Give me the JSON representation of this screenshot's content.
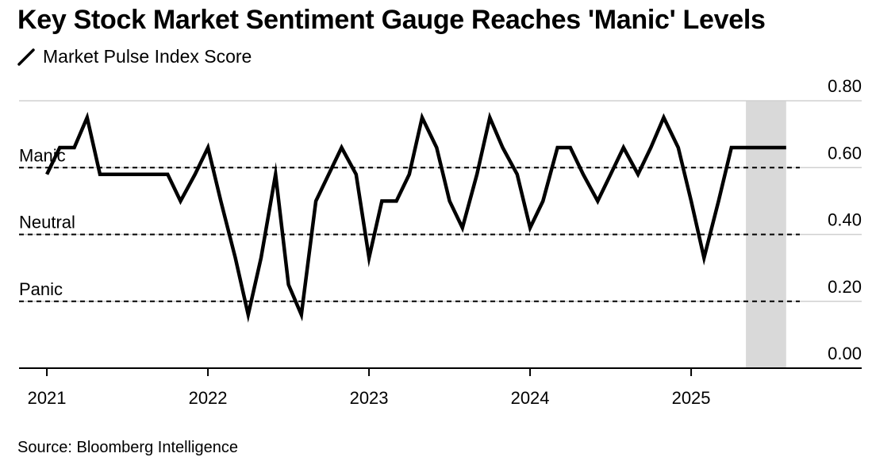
{
  "title": "Key Stock Market Sentiment Gauge Reaches 'Manic' Levels",
  "source": "Source: Bloomberg Intelligence",
  "chart_data": {
    "type": "line",
    "title": "Key Stock Market Sentiment Gauge Reaches 'Manic' Levels",
    "legend": "Market Pulse Index Score",
    "ylim": [
      0,
      0.8
    ],
    "y_ticks": [
      "0.00",
      "0.20",
      "0.40",
      "0.60",
      "0.80"
    ],
    "x_ticks": [
      "2021",
      "2022",
      "2023",
      "2024",
      "2025"
    ],
    "reference_lines": [
      {
        "label": "Manic",
        "value": 0.6
      },
      {
        "label": "Neutral",
        "value": 0.4
      },
      {
        "label": "Panic",
        "value": 0.2
      }
    ],
    "shaded_region": {
      "start": 2025.34,
      "end": 2025.59
    },
    "series": [
      {
        "name": "Market Pulse Index Score",
        "color": "#000000",
        "x": [
          2021.0,
          2021.08,
          2021.17,
          2021.25,
          2021.33,
          2021.42,
          2021.5,
          2021.58,
          2021.67,
          2021.75,
          2021.83,
          2021.92,
          2022.0,
          2022.08,
          2022.17,
          2022.25,
          2022.33,
          2022.42,
          2022.5,
          2022.58,
          2022.67,
          2022.75,
          2022.83,
          2022.92,
          2023.0,
          2023.08,
          2023.17,
          2023.25,
          2023.33,
          2023.42,
          2023.5,
          2023.58,
          2023.67,
          2023.75,
          2023.83,
          2023.92,
          2024.0,
          2024.08,
          2024.17,
          2024.25,
          2024.33,
          2024.42,
          2024.5,
          2024.58,
          2024.67,
          2024.75,
          2024.83,
          2024.92,
          2025.0,
          2025.08,
          2025.17,
          2025.25,
          2025.34,
          2025.42,
          2025.5,
          2025.59
        ],
        "values": [
          0.58,
          0.66,
          0.66,
          0.75,
          0.58,
          0.58,
          0.58,
          0.58,
          0.58,
          0.58,
          0.5,
          0.58,
          0.66,
          0.5,
          0.33,
          0.16,
          0.33,
          0.58,
          0.25,
          0.16,
          0.5,
          0.58,
          0.66,
          0.58,
          0.33,
          0.5,
          0.5,
          0.58,
          0.75,
          0.66,
          0.5,
          0.42,
          0.58,
          0.75,
          0.66,
          0.58,
          0.42,
          0.5,
          0.66,
          0.66,
          0.58,
          0.5,
          0.58,
          0.66,
          0.58,
          0.66,
          0.75,
          0.66,
          0.5,
          0.33,
          0.5,
          0.66,
          0.66,
          0.66,
          0.66,
          0.66
        ]
      }
    ]
  }
}
